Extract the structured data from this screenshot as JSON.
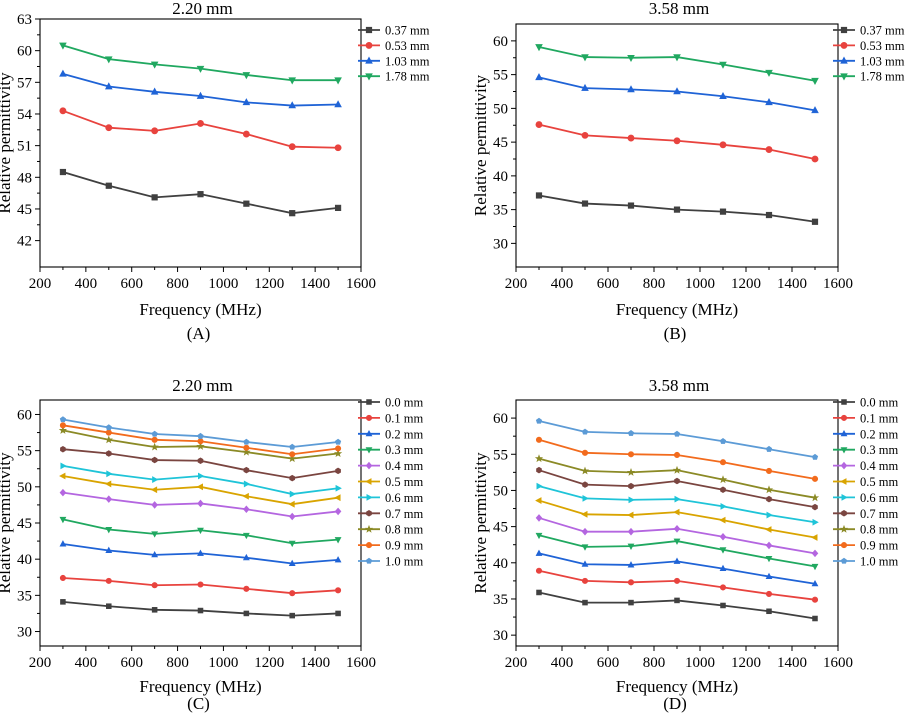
{
  "figure": {
    "panels": [
      {
        "id": "A",
        "label": "(A)"
      },
      {
        "id": "B",
        "label": "(B)"
      },
      {
        "id": "C",
        "label": "(C)"
      },
      {
        "id": "D",
        "label": "(D)"
      }
    ]
  },
  "chart_data": [
    {
      "id": "A",
      "type": "line",
      "title": "2.20 mm",
      "panel_label": "(A)",
      "xlabel": "Frequency (MHz)",
      "ylabel": "Relative permittivity",
      "xlim": [
        200,
        1600
      ],
      "ylim": [
        39.5,
        63
      ],
      "xticks": [
        200,
        400,
        600,
        800,
        1000,
        1200,
        1400,
        1600
      ],
      "yticks": [
        42,
        45,
        48,
        51,
        54,
        57,
        60,
        63
      ],
      "legend_position": "right",
      "x": [
        300,
        500,
        700,
        900,
        1100,
        1300,
        1500
      ],
      "series": [
        {
          "name": "0.37 mm",
          "color": "#404040",
          "marker": "square",
          "values": [
            48.5,
            47.2,
            46.1,
            46.4,
            45.5,
            44.6,
            45.1
          ]
        },
        {
          "name": "0.53 mm",
          "color": "#e8433e",
          "marker": "circle",
          "values": [
            54.3,
            52.7,
            52.4,
            53.1,
            52.1,
            50.9,
            50.8
          ]
        },
        {
          "name": "1.03 mm",
          "color": "#1f63d6",
          "marker": "triangle-up",
          "values": [
            57.8,
            56.6,
            56.1,
            55.7,
            55.1,
            54.8,
            54.9
          ]
        },
        {
          "name": "1.78 mm",
          "color": "#20a860",
          "marker": "triangle-down",
          "values": [
            60.5,
            59.2,
            58.7,
            58.3,
            57.7,
            57.2,
            57.2
          ]
        }
      ]
    },
    {
      "id": "B",
      "type": "line",
      "title": "3.58 mm",
      "panel_label": "(B)",
      "xlabel": "Frequency (MHz)",
      "ylabel": "Relative permittivity",
      "xlim": [
        200,
        1600
      ],
      "ylim": [
        26.5,
        62.5
      ],
      "xticks": [
        200,
        400,
        600,
        800,
        1000,
        1200,
        1400,
        1600
      ],
      "yticks": [
        30,
        35,
        40,
        45,
        50,
        55,
        60
      ],
      "legend_position": "right",
      "x": [
        300,
        500,
        700,
        900,
        1100,
        1300,
        1500
      ],
      "series": [
        {
          "name": "0.37 mm",
          "color": "#404040",
          "marker": "square",
          "values": [
            37.1,
            35.9,
            35.6,
            35.0,
            34.7,
            34.2,
            33.2
          ]
        },
        {
          "name": "0.53 mm",
          "color": "#e8433e",
          "marker": "circle",
          "values": [
            47.6,
            46.0,
            45.6,
            45.2,
            44.6,
            43.9,
            42.5
          ]
        },
        {
          "name": "1.03 mm",
          "color": "#1f63d6",
          "marker": "triangle-up",
          "values": [
            54.6,
            53.0,
            52.8,
            52.5,
            51.8,
            50.9,
            49.7
          ]
        },
        {
          "name": "1.78 mm",
          "color": "#20a860",
          "marker": "triangle-down",
          "values": [
            59.1,
            57.6,
            57.5,
            57.6,
            56.5,
            55.3,
            54.1
          ]
        }
      ]
    },
    {
      "id": "C",
      "type": "line",
      "title": "2.20 mm",
      "panel_label": "(C)",
      "xlabel": "Frequency (MHz)",
      "ylabel": "Relative permittivity",
      "xlim": [
        200,
        1600
      ],
      "ylim": [
        28,
        62
      ],
      "xticks": [
        200,
        400,
        600,
        800,
        1000,
        1200,
        1400,
        1600
      ],
      "yticks": [
        30,
        35,
        40,
        45,
        50,
        55,
        60
      ],
      "legend_position": "right",
      "x": [
        300,
        500,
        700,
        900,
        1100,
        1300,
        1500
      ],
      "series": [
        {
          "name": "0.0 mm",
          "color": "#404040",
          "marker": "square",
          "values": [
            34.1,
            33.5,
            33.0,
            32.9,
            32.5,
            32.2,
            32.5
          ]
        },
        {
          "name": "0.1 mm",
          "color": "#e8433e",
          "marker": "circle",
          "values": [
            37.4,
            37.0,
            36.4,
            36.5,
            35.9,
            35.3,
            35.7
          ]
        },
        {
          "name": "0.2 mm",
          "color": "#1f63d6",
          "marker": "triangle-up",
          "values": [
            42.1,
            41.2,
            40.6,
            40.8,
            40.2,
            39.4,
            39.9
          ]
        },
        {
          "name": "0.3 mm",
          "color": "#20a860",
          "marker": "triangle-down",
          "values": [
            45.5,
            44.1,
            43.5,
            44.0,
            43.3,
            42.2,
            42.7
          ]
        },
        {
          "name": "0.4 mm",
          "color": "#b466e0",
          "marker": "diamond",
          "values": [
            49.2,
            48.3,
            47.5,
            47.7,
            46.9,
            45.9,
            46.6
          ]
        },
        {
          "name": "0.5 mm",
          "color": "#d9a400",
          "marker": "triangle-left",
          "values": [
            51.5,
            50.4,
            49.6,
            50.0,
            48.7,
            47.6,
            48.5
          ]
        },
        {
          "name": "0.6 mm",
          "color": "#1fc4d8",
          "marker": "triangle-right",
          "values": [
            52.9,
            51.8,
            51.0,
            51.5,
            50.4,
            49.0,
            49.8
          ]
        },
        {
          "name": "0.7 mm",
          "color": "#7a4540",
          "marker": "hexagon",
          "values": [
            55.2,
            54.6,
            53.7,
            53.6,
            52.3,
            51.2,
            52.2
          ]
        },
        {
          "name": "0.8 mm",
          "color": "#8b8a26",
          "marker": "star",
          "values": [
            57.8,
            56.5,
            55.5,
            55.6,
            54.8,
            53.9,
            54.6
          ]
        },
        {
          "name": "0.9 mm",
          "color": "#f26b1d",
          "marker": "circle",
          "values": [
            58.5,
            57.5,
            56.5,
            56.3,
            55.4,
            54.5,
            55.3
          ]
        },
        {
          "name": "1.0 mm",
          "color": "#5c9bd6",
          "marker": "pentagon",
          "values": [
            59.3,
            58.2,
            57.3,
            57.0,
            56.2,
            55.5,
            56.2
          ]
        }
      ]
    },
    {
      "id": "D",
      "type": "line",
      "title": "3.58 mm",
      "panel_label": "(D)",
      "xlabel": "Frequency (MHz)",
      "ylabel": "Relative permittivity",
      "xlim": [
        200,
        1600
      ],
      "ylim": [
        28.5,
        62.5
      ],
      "xticks": [
        200,
        400,
        600,
        800,
        1000,
        1200,
        1400,
        1600
      ],
      "yticks": [
        30,
        35,
        40,
        45,
        50,
        55,
        60
      ],
      "legend_position": "right",
      "x": [
        300,
        500,
        700,
        900,
        1100,
        1300,
        1500
      ],
      "series": [
        {
          "name": "0.0 mm",
          "color": "#404040",
          "marker": "square",
          "values": [
            35.9,
            34.5,
            34.5,
            34.8,
            34.1,
            33.3,
            32.3
          ]
        },
        {
          "name": "0.1 mm",
          "color": "#e8433e",
          "marker": "circle",
          "values": [
            38.9,
            37.5,
            37.3,
            37.5,
            36.6,
            35.7,
            34.9
          ]
        },
        {
          "name": "0.2 mm",
          "color": "#1f63d6",
          "marker": "triangle-up",
          "values": [
            41.3,
            39.8,
            39.7,
            40.2,
            39.2,
            38.1,
            37.1
          ]
        },
        {
          "name": "0.3 mm",
          "color": "#20a860",
          "marker": "triangle-down",
          "values": [
            43.8,
            42.2,
            42.3,
            43.0,
            41.8,
            40.6,
            39.5
          ]
        },
        {
          "name": "0.4 mm",
          "color": "#b466e0",
          "marker": "diamond",
          "values": [
            46.2,
            44.3,
            44.3,
            44.7,
            43.6,
            42.4,
            41.3
          ]
        },
        {
          "name": "0.5 mm",
          "color": "#d9a400",
          "marker": "triangle-left",
          "values": [
            48.6,
            46.7,
            46.6,
            47.0,
            45.9,
            44.6,
            43.5
          ]
        },
        {
          "name": "0.6 mm",
          "color": "#1fc4d8",
          "marker": "triangle-right",
          "values": [
            50.6,
            48.9,
            48.7,
            48.8,
            47.8,
            46.6,
            45.6
          ]
        },
        {
          "name": "0.7 mm",
          "color": "#7a4540",
          "marker": "hexagon",
          "values": [
            52.8,
            50.8,
            50.6,
            51.3,
            50.1,
            48.8,
            47.7
          ]
        },
        {
          "name": "0.8 mm",
          "color": "#8b8a26",
          "marker": "star",
          "values": [
            54.4,
            52.7,
            52.5,
            52.8,
            51.5,
            50.1,
            49.0
          ]
        },
        {
          "name": "0.9 mm",
          "color": "#f26b1d",
          "marker": "circle",
          "values": [
            57.0,
            55.2,
            55.0,
            54.9,
            53.9,
            52.7,
            51.6
          ]
        },
        {
          "name": "1.0 mm",
          "color": "#5c9bd6",
          "marker": "pentagon",
          "values": [
            59.6,
            58.1,
            57.9,
            57.8,
            56.8,
            55.7,
            54.6
          ]
        }
      ]
    }
  ]
}
